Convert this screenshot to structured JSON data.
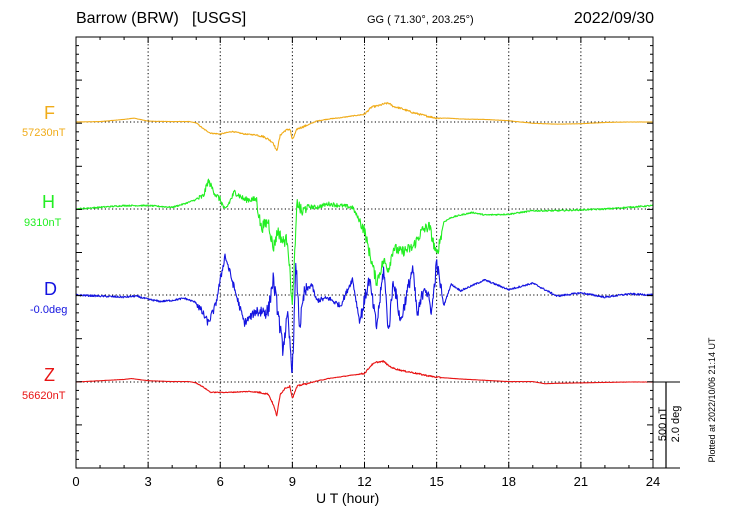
{
  "header": {
    "station": "Barrow (BRW)",
    "source": "[USGS]",
    "coords": "GG ( 71.30°, 203.25°)",
    "date": "2022/09/30"
  },
  "footer": {
    "xlabel": "U T (hour)",
    "plotted": "Plotted at 2022/10/06 21:14 UT",
    "scale_nt": "500 nT",
    "scale_deg": "2.0 deg"
  },
  "colors": {
    "F": "#f0ac1a",
    "H": "#22ee22",
    "D": "#1414e0",
    "Z": "#e81414",
    "grid": "#000000",
    "background": "#ffffff"
  },
  "chart_data": {
    "type": "line",
    "xlim": [
      0,
      24
    ],
    "x_ticks": [
      0,
      3,
      6,
      9,
      12,
      15,
      18,
      21,
      24
    ],
    "x_tick_labels": [
      "0",
      "3",
      "6",
      "9",
      "12",
      "15",
      "18",
      "21",
      "24"
    ],
    "grid": true,
    "y_units": "nT offset from baseline (D in 0.1 deg)",
    "series": [
      {
        "name": "F",
        "baseline_label": "57230nT",
        "x": [
          0,
          1,
          2,
          2.4,
          3,
          4,
          4.7,
          5,
          5.3,
          5.6,
          6,
          6.5,
          7,
          7.5,
          7.8,
          8,
          8.2,
          8.35,
          8.5,
          8.7,
          8.9,
          9,
          9.2,
          9.4,
          9.6,
          10,
          10.5,
          11,
          11.5,
          12,
          12.3,
          12.6,
          12.8,
          13,
          13.2,
          13.5,
          14,
          14.5,
          15,
          15.5,
          16,
          17,
          18,
          19,
          20,
          21,
          22,
          23,
          24
        ],
        "y": [
          0,
          5,
          30,
          45,
          10,
          5,
          5,
          -10,
          -80,
          -130,
          -140,
          -110,
          -140,
          -150,
          -170,
          -200,
          -240,
          -340,
          -150,
          -100,
          -80,
          -210,
          -80,
          -60,
          -40,
          10,
          35,
          50,
          70,
          90,
          175,
          190,
          210,
          220,
          180,
          160,
          110,
          75,
          45,
          45,
          35,
          30,
          15,
          -15,
          -25,
          -20,
          -5,
          0,
          0
        ]
      },
      {
        "name": "H",
        "baseline_label": "9310nT",
        "x": [
          0,
          1,
          2,
          3,
          3.5,
          4,
          4.5,
          5,
          5.3,
          5.5,
          5.8,
          6,
          6.2,
          6.6,
          7,
          7.5,
          7.7,
          8,
          8.2,
          8.4,
          8.6,
          8.8,
          9,
          9.2,
          9.4,
          9.6,
          10,
          10.5,
          11,
          11.5,
          12,
          12.2,
          12.5,
          12.8,
          13,
          13.2,
          13.5,
          14,
          14.4,
          14.7,
          15,
          15.3,
          15.6,
          16,
          16.5,
          17,
          18,
          18.5,
          19,
          20,
          21,
          22,
          23,
          24
        ],
        "y": [
          0,
          20,
          40,
          40,
          30,
          20,
          60,
          110,
          150,
          330,
          170,
          110,
          -20,
          200,
          110,
          110,
          -220,
          -140,
          -460,
          -250,
          -380,
          -350,
          -1150,
          90,
          -50,
          30,
          20,
          60,
          40,
          20,
          -250,
          -500,
          -850,
          -600,
          -700,
          -450,
          -500,
          -450,
          -250,
          -200,
          -550,
          -150,
          -100,
          -70,
          -40,
          -70,
          -60,
          -40,
          -20,
          -20,
          -10,
          0,
          20,
          40
        ]
      },
      {
        "name": "D",
        "baseline_label": "-0.0deg",
        "x": [
          0,
          1,
          2,
          2.5,
          3,
          3.5,
          4,
          4.5,
          5,
          5.3,
          5.5,
          5.8,
          6.2,
          6.6,
          7,
          7.5,
          8,
          8.2,
          8.4,
          8.6,
          8.8,
          9,
          9.15,
          9.3,
          9.5,
          9.8,
          10,
          10.5,
          11,
          11.5,
          11.8,
          12.2,
          12.5,
          12.8,
          13,
          13.2,
          13.5,
          14,
          14.2,
          14.5,
          14.8,
          15,
          15.3,
          15.6,
          16,
          17,
          18,
          19,
          20,
          21,
          22,
          23,
          24
        ],
        "y": [
          0,
          -0.1,
          -0.2,
          -0.1,
          -0.4,
          -0.6,
          -0.5,
          -0.3,
          -0.7,
          -1.8,
          -2.6,
          -1,
          3.7,
          0.5,
          -2.6,
          -1.5,
          -1.5,
          1.5,
          -1.6,
          -5,
          -2,
          -7.2,
          2.9,
          -3,
          0.2,
          1,
          -0.5,
          -0.3,
          -1,
          1.5,
          -2.5,
          1.5,
          -3,
          2.5,
          -3.5,
          1.5,
          -2.5,
          2.5,
          -2,
          1,
          -1.5,
          3,
          -1,
          1,
          0.4,
          1.4,
          0.5,
          1.1,
          -0.1,
          0.2,
          -0.2,
          0.1,
          0
        ]
      },
      {
        "name": "Z",
        "baseline_label": "56620nT",
        "x": [
          0,
          1,
          2,
          2.3,
          3,
          4,
          4.7,
          5,
          5.3,
          5.6,
          6,
          6.4,
          6.8,
          7.2,
          7.6,
          8,
          8.2,
          8.35,
          8.5,
          8.7,
          8.9,
          9,
          9.2,
          9.4,
          9.6,
          10,
          10.5,
          11,
          11.5,
          12,
          12.3,
          12.5,
          12.8,
          13,
          13.2,
          13.6,
          14,
          14.5,
          15,
          15.5,
          16,
          17,
          18,
          19,
          19.5,
          20,
          21,
          22,
          23,
          24
        ],
        "y": [
          0,
          15,
          30,
          40,
          15,
          5,
          5,
          -10,
          -60,
          -120,
          -120,
          -120,
          -115,
          -110,
          -120,
          -140,
          -260,
          -390,
          -140,
          -70,
          -50,
          -190,
          -50,
          -30,
          -20,
          10,
          40,
          60,
          80,
          100,
          200,
          230,
          240,
          190,
          160,
          130,
          110,
          80,
          55,
          45,
          35,
          20,
          5,
          5,
          -20,
          -15,
          -10,
          -5,
          0,
          0
        ]
      }
    ]
  }
}
